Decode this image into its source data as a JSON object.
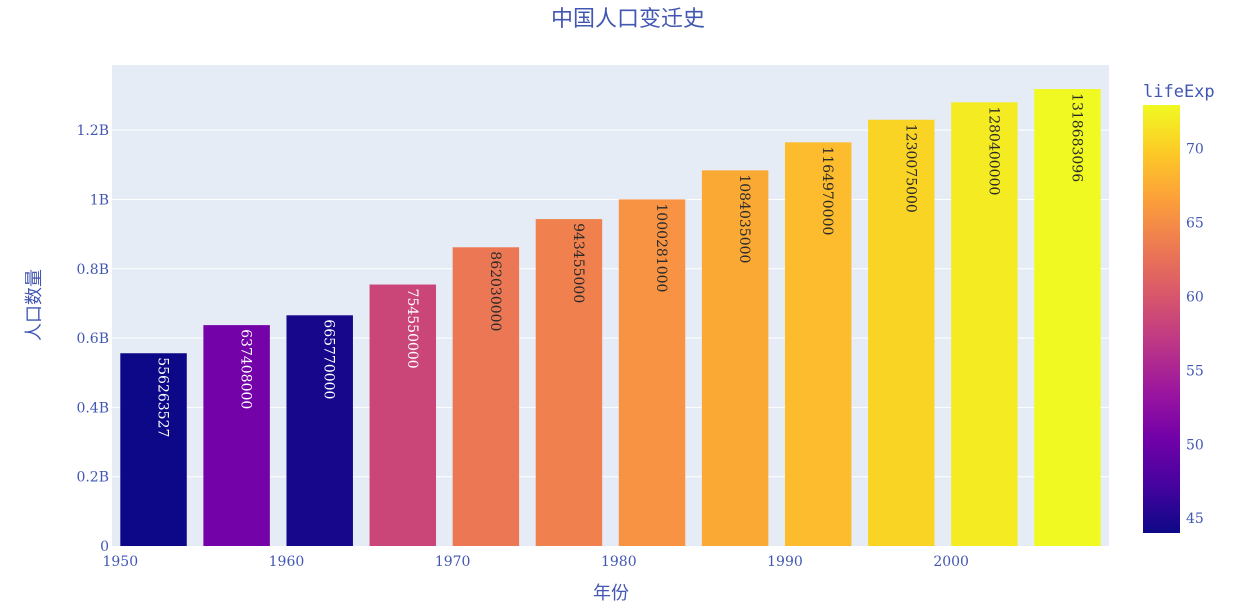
{
  "chart_data": {
    "type": "bar",
    "title": "中国人口变迁史",
    "xlabel": "年份",
    "ylabel": "人口数量",
    "x": [
      1952,
      1957,
      1962,
      1967,
      1972,
      1977,
      1982,
      1987,
      1992,
      1997,
      2002,
      2007
    ],
    "values": [
      556263527,
      637408000,
      665770000,
      754550000,
      862030000,
      943455000,
      1000281000,
      1084035000,
      1164970000,
      1230075000,
      1280400000,
      1318683096
    ],
    "bar_labels": [
      "556263527",
      "637408000",
      "665770000",
      "754550000",
      "862030000",
      "943455000",
      "1000281000",
      "1084035000",
      "1164970000",
      "1230075000",
      "1280400000",
      "1318683096"
    ],
    "color_values": [
      44.0,
      50.55,
      44.5,
      58.38,
      63.12,
      63.97,
      65.53,
      67.27,
      68.69,
      70.43,
      72.03,
      72.96
    ],
    "color_label": "lifeExp",
    "xlim": [
      1949.5,
      2009.5
    ],
    "ylim": [
      0,
      1388087469
    ],
    "x_ticks": [
      {
        "value": 1950,
        "label": "1950"
      },
      {
        "value": 1960,
        "label": "1960"
      },
      {
        "value": 1970,
        "label": "1970"
      },
      {
        "value": 1980,
        "label": "1980"
      },
      {
        "value": 1990,
        "label": "1990"
      },
      {
        "value": 2000,
        "label": "2000"
      }
    ],
    "y_ticks": [
      {
        "value": 0,
        "label": "0"
      },
      {
        "value": 200000000,
        "label": "0.2B"
      },
      {
        "value": 400000000,
        "label": "0.4B"
      },
      {
        "value": 600000000,
        "label": "0.6B"
      },
      {
        "value": 800000000,
        "label": "0.8B"
      },
      {
        "value": 1000000000,
        "label": "1B"
      },
      {
        "value": 1200000000,
        "label": "1.2B"
      }
    ],
    "colorbar": {
      "title": "lifeExp",
      "range": [
        44.0,
        72.96
      ],
      "ticks": [
        {
          "value": 45,
          "label": "45"
        },
        {
          "value": 50,
          "label": "50"
        },
        {
          "value": 55,
          "label": "55"
        },
        {
          "value": 60,
          "label": "60"
        },
        {
          "value": 65,
          "label": "65"
        },
        {
          "value": 70,
          "label": "70"
        }
      ]
    },
    "colorscale": [
      "#0d0887",
      "#46039f",
      "#7201a8",
      "#9c179e",
      "#bd3786",
      "#d8576b",
      "#ed7953",
      "#fb9f3a",
      "#fdca26",
      "#f0f921"
    ],
    "grid": true,
    "plot_background": "#e5ecf6",
    "text_color": "#4257b2"
  }
}
